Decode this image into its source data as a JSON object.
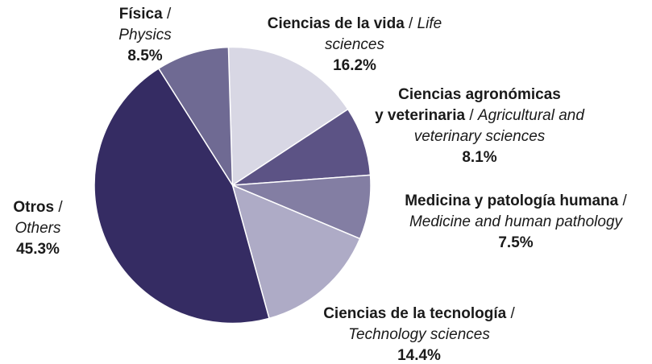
{
  "chart_data": {
    "type": "pie",
    "separator": "/",
    "categories": [
      {
        "es": [
          "Ciencias de la vida"
        ],
        "en": "Life sciences"
      },
      {
        "es": [
          "Ciencias agronómicas",
          "y veterinaria"
        ],
        "en": "Agricultural and veterinary sciences"
      },
      {
        "es": [
          "Medicina y patología humana"
        ],
        "en": "Medicine and human pathology"
      },
      {
        "es": [
          "Ciencias de la tecnología"
        ],
        "en": "Technology sciences"
      },
      {
        "es": [
          "Otros"
        ],
        "en": "Others"
      },
      {
        "es": [
          "Física"
        ],
        "en": "Physics"
      }
    ],
    "values": [
      16.2,
      8.1,
      7.5,
      14.4,
      45.3,
      8.5
    ],
    "value_labels": [
      "16.2%",
      "8.1%",
      "7.5%",
      "14.4%",
      "45.3%",
      "8.5%"
    ],
    "colors": [
      "#d8d7e4",
      "#5c5385",
      "#837ea3",
      "#aeabc6",
      "#352c63",
      "#6f6a93"
    ]
  }
}
